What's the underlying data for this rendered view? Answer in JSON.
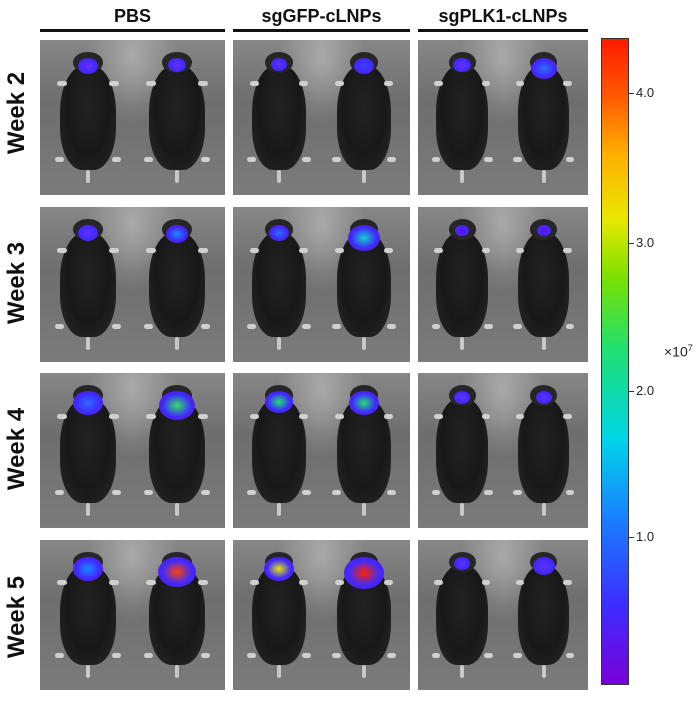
{
  "groups": [
    "PBS",
    "sgGFP-cLNPs",
    "sgPLK1-cLNPs"
  ],
  "rows": [
    "Week 2",
    "Week 3",
    "Week 4",
    "Week 5"
  ],
  "colorbar": {
    "tick_labels": [
      "4.0",
      "3.0",
      "2.0",
      "1.0"
    ],
    "unit_base": "×10",
    "unit_exponent": "7",
    "colors": [
      "#7a00d9",
      "#1a7bff",
      "#00d6e8",
      "#20e070",
      "#e8e800",
      "#ff5a00",
      "#ff1a00"
    ]
  }
}
